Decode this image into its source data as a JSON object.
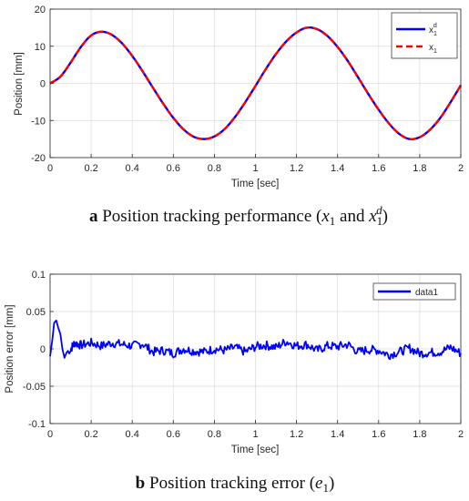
{
  "chart_data": [
    {
      "type": "line",
      "panel": "a",
      "xlabel": "Time [sec]",
      "ylabel": "Position [mm]",
      "xlim": [
        0,
        2
      ],
      "ylim": [
        -20,
        20
      ],
      "xticks": [
        0,
        0.2,
        0.4,
        0.6,
        0.8,
        1,
        1.2,
        1.4,
        1.6,
        1.8,
        2
      ],
      "xtick_labels": [
        "0",
        "0.2",
        "0.4",
        "0.6",
        "0.8",
        "1",
        "1.2",
        "1.4",
        "1.6",
        "1.8",
        "2"
      ],
      "yticks": [
        -20,
        -10,
        0,
        10,
        20
      ],
      "ytick_labels": [
        "-20",
        "-10",
        "0",
        "10",
        "20"
      ],
      "grid": true,
      "legend": "top-right",
      "series": [
        {
          "name": "x1d",
          "legend_base": "x",
          "legend_sub": "1",
          "legend_sup": "d",
          "color": "#0000ff",
          "style": "solid",
          "x": [
            0,
            0.05,
            0.1,
            0.15,
            0.2,
            0.25,
            0.3,
            0.35,
            0.4,
            0.45,
            0.5,
            0.55,
            0.6,
            0.65,
            0.7,
            0.75,
            0.8,
            0.85,
            0.9,
            0.95,
            1.0,
            1.05,
            1.1,
            1.15,
            1.2,
            1.25,
            1.3,
            1.35,
            1.4,
            1.45,
            1.5,
            1.55,
            1.6,
            1.65,
            1.7,
            1.75,
            1.8,
            1.85,
            1.9,
            1.95,
            2.0
          ],
          "y": [
            0,
            1.8,
            5.6,
            9.8,
            12.9,
            13.9,
            13.1,
            10.8,
            7.4,
            3.3,
            -1.1,
            -5.4,
            -9.3,
            -12.4,
            -14.4,
            -15.0,
            -14.3,
            -12.3,
            -9.1,
            -5.1,
            -0.7,
            3.8,
            7.9,
            11.3,
            13.7,
            15.0,
            14.6,
            12.8,
            9.8,
            6.0,
            1.6,
            -2.9,
            -7.1,
            -10.8,
            -13.6,
            -15.0,
            -14.5,
            -12.5,
            -9.3,
            -5.1,
            -0.5
          ]
        },
        {
          "name": "x1",
          "legend_base": "x",
          "legend_sub": "1",
          "legend_sup": "",
          "color": "#ff0000",
          "style": "dashed",
          "x": [
            0,
            0.05,
            0.1,
            0.15,
            0.2,
            0.25,
            0.3,
            0.35,
            0.4,
            0.45,
            0.5,
            0.55,
            0.6,
            0.65,
            0.7,
            0.75,
            0.8,
            0.85,
            0.9,
            0.95,
            1.0,
            1.05,
            1.1,
            1.15,
            1.2,
            1.25,
            1.3,
            1.35,
            1.4,
            1.45,
            1.5,
            1.55,
            1.6,
            1.65,
            1.7,
            1.75,
            1.8,
            1.85,
            1.9,
            1.95,
            2.0
          ],
          "y": [
            0,
            1.8,
            5.6,
            9.8,
            12.9,
            13.9,
            13.1,
            10.8,
            7.4,
            3.3,
            -1.1,
            -5.4,
            -9.3,
            -12.4,
            -14.4,
            -15.0,
            -14.3,
            -12.3,
            -9.1,
            -5.1,
            -0.7,
            3.8,
            7.9,
            11.3,
            13.7,
            15.0,
            14.6,
            12.8,
            9.8,
            6.0,
            1.6,
            -2.9,
            -7.1,
            -10.8,
            -13.6,
            -15.0,
            -14.5,
            -12.5,
            -9.3,
            -5.1,
            -0.5
          ]
        }
      ],
      "caption": {
        "letter": "a",
        "text_before": " Position tracking performance (",
        "var1_base": "x",
        "var1_sub": "1",
        "and": " and ",
        "var2_base": "x",
        "var2_sub": "1",
        "var2_sup": "d",
        "close": ")"
      }
    },
    {
      "type": "line",
      "panel": "b",
      "xlabel": "Time [sec]",
      "ylabel": "Position error [mm]",
      "xlim": [
        0,
        2
      ],
      "ylim": [
        -0.1,
        0.1
      ],
      "xticks": [
        0,
        0.2,
        0.4,
        0.6,
        0.8,
        1,
        1.2,
        1.4,
        1.6,
        1.8,
        2
      ],
      "xtick_labels": [
        "0",
        "0.2",
        "0.4",
        "0.6",
        "0.8",
        "1",
        "1.2",
        "1.4",
        "1.6",
        "1.8",
        "2"
      ],
      "yticks": [
        -0.1,
        -0.05,
        0,
        0.05,
        0.1
      ],
      "ytick_labels": [
        "-0.1",
        "-0.05",
        "0",
        "0.05",
        "0.1"
      ],
      "grid": true,
      "legend": "top-right",
      "series": [
        {
          "name": "data1",
          "color": "#0000ff",
          "style": "solid",
          "x": [
            0,
            0.01,
            0.02,
            0.03,
            0.04,
            0.05,
            0.06,
            0.07,
            0.08,
            0.1,
            0.12,
            0.15,
            0.2,
            0.25,
            0.3,
            0.35,
            0.4,
            0.45,
            0.5,
            0.55,
            0.6,
            0.65,
            0.7,
            0.75,
            0.8,
            0.85,
            0.9,
            0.95,
            1.0,
            1.05,
            1.1,
            1.15,
            1.2,
            1.25,
            1.3,
            1.35,
            1.4,
            1.45,
            1.5,
            1.55,
            1.6,
            1.65,
            1.7,
            1.75,
            1.8,
            1.85,
            1.9,
            1.95,
            2.0
          ],
          "y": [
            -0.01,
            0.01,
            0.035,
            0.038,
            0.028,
            0.02,
            0.0,
            -0.012,
            -0.005,
            0.0,
            0.008,
            0.005,
            0.008,
            0.004,
            0.008,
            0.006,
            0.004,
            0.007,
            -0.004,
            -0.002,
            -0.006,
            0.0,
            -0.003,
            -0.004,
            0.0,
            -0.002,
            0.002,
            -0.004,
            0.003,
            0.005,
            0.002,
            0.01,
            0.004,
            0.006,
            -0.002,
            0.004,
            0.003,
            0.006,
            -0.004,
            -0.001,
            -0.002,
            -0.008,
            -0.004,
            0.001,
            -0.006,
            -0.005,
            -0.004,
            0.002,
            -0.006
          ]
        }
      ],
      "caption": {
        "letter": "b",
        "text_before": " Position tracking error (",
        "var1_base": "e",
        "var1_sub": "1",
        "close": ")"
      }
    }
  ]
}
